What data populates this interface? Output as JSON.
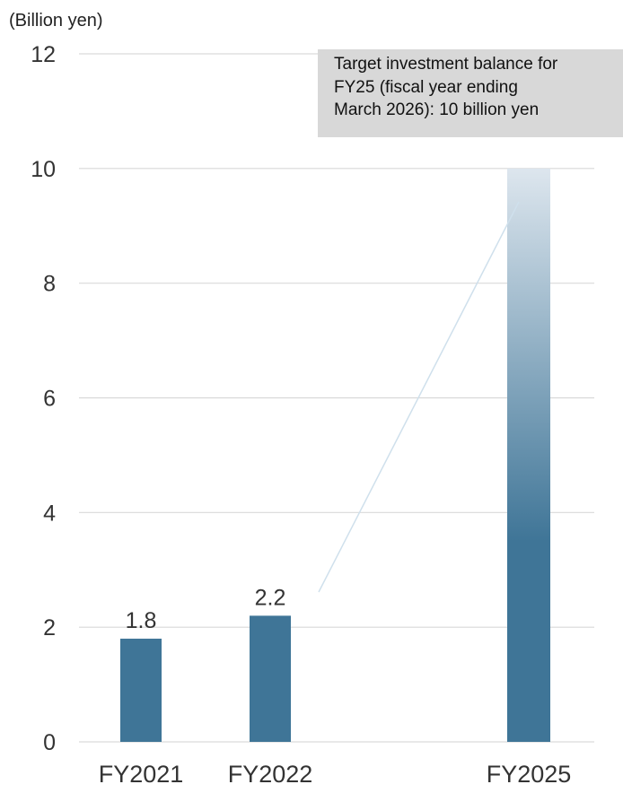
{
  "chart_data": {
    "type": "bar",
    "unit_label": "(Billion yen)",
    "categories": [
      "FY2021",
      "FY2022",
      "FY2025"
    ],
    "values": [
      1.8,
      2.2,
      10
    ],
    "value_labels": [
      "1.8",
      "2.2",
      ""
    ],
    "ylim": [
      0,
      12
    ],
    "yticks": [
      "0",
      "2",
      "4",
      "6",
      "8",
      "10",
      "12"
    ],
    "grid": true,
    "bar_color": "#3f7597",
    "target_gradient_top": "#dde6ee",
    "target_gradient_bottom": "#3f7597",
    "annotation": {
      "lines": [
        "Target investment balance for",
        "FY25 (fiscal year ending",
        "March 2026): 10 billion yen"
      ]
    }
  }
}
